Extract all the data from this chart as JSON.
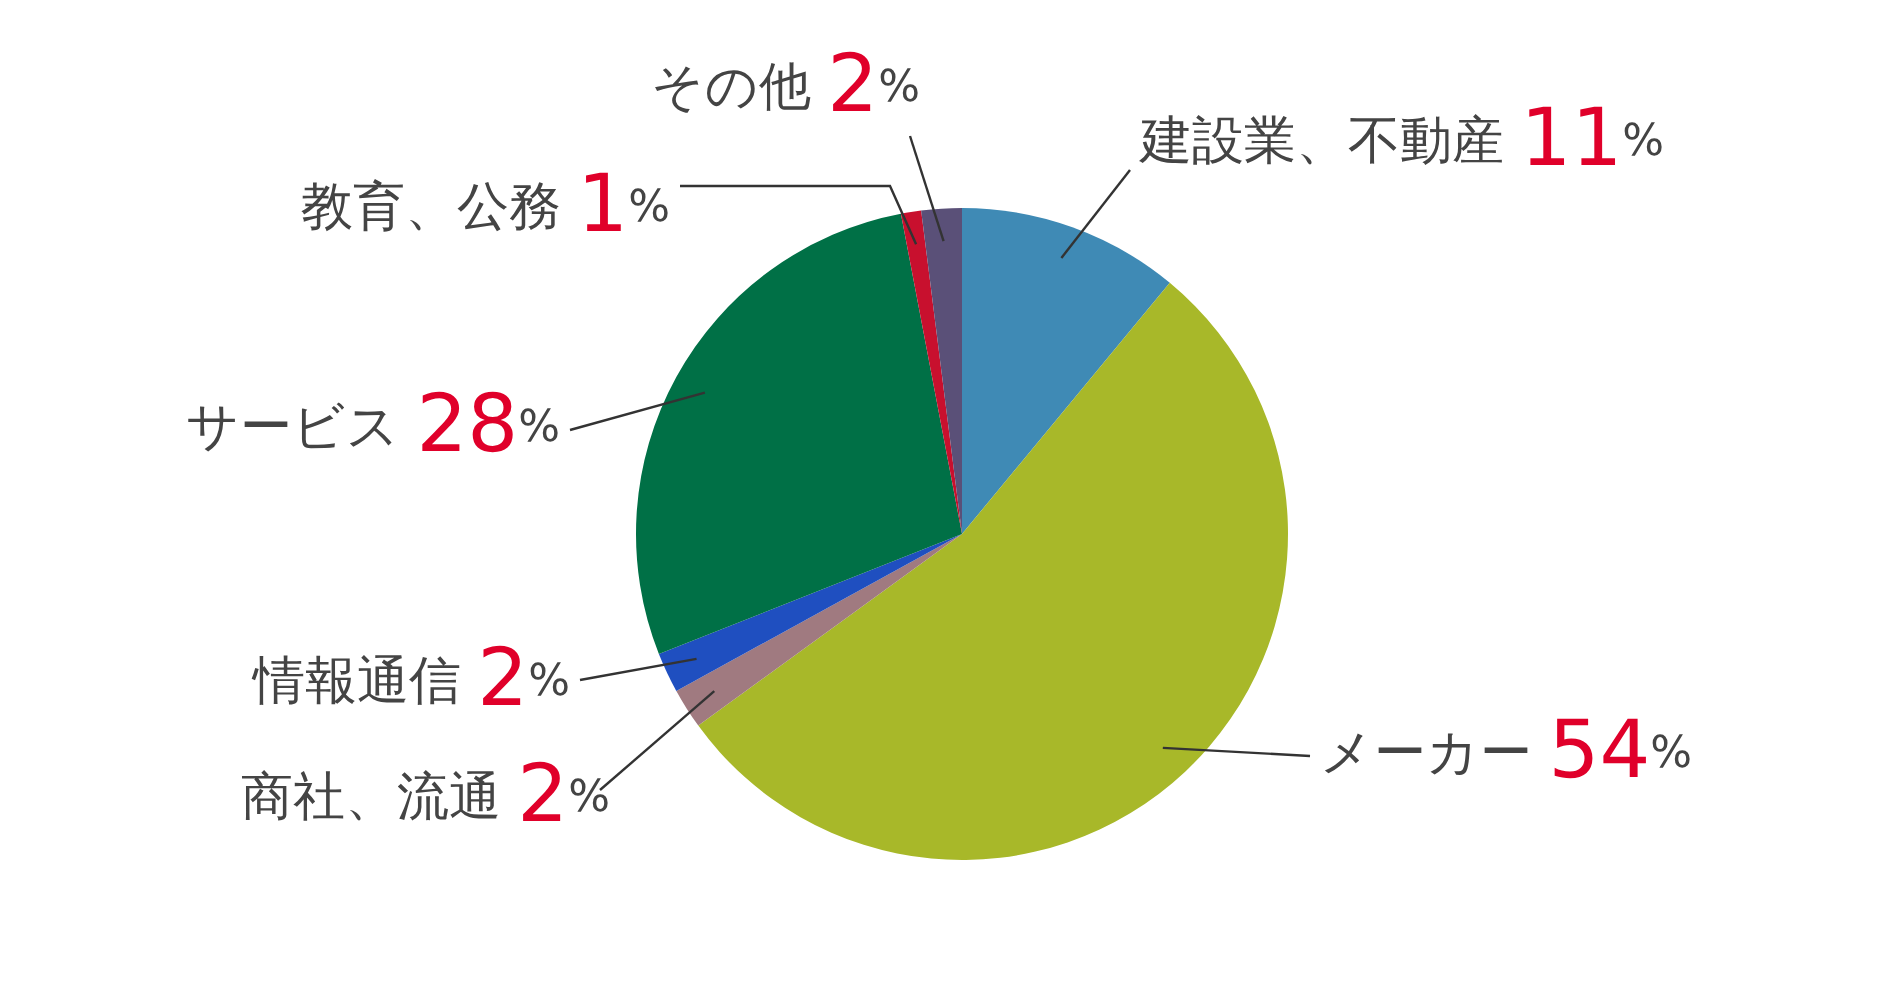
{
  "chart_data": {
    "type": "pie",
    "categories": [
      "建設業、不動産",
      "メーカー",
      "商社、流通",
      "情報通信",
      "サービス",
      "教育、公務",
      "その他"
    ],
    "values": [
      11,
      54,
      2,
      2,
      28,
      1,
      2
    ],
    "colors": [
      "#3f8ab5",
      "#a8b829",
      "#a07a80",
      "#1f4fc0",
      "#007046",
      "#c8102e",
      "#5a5078"
    ],
    "value_labels": [
      "11%",
      "54%",
      "2%",
      "2%",
      "28%",
      "1%",
      "2%"
    ],
    "legend": false
  }
}
